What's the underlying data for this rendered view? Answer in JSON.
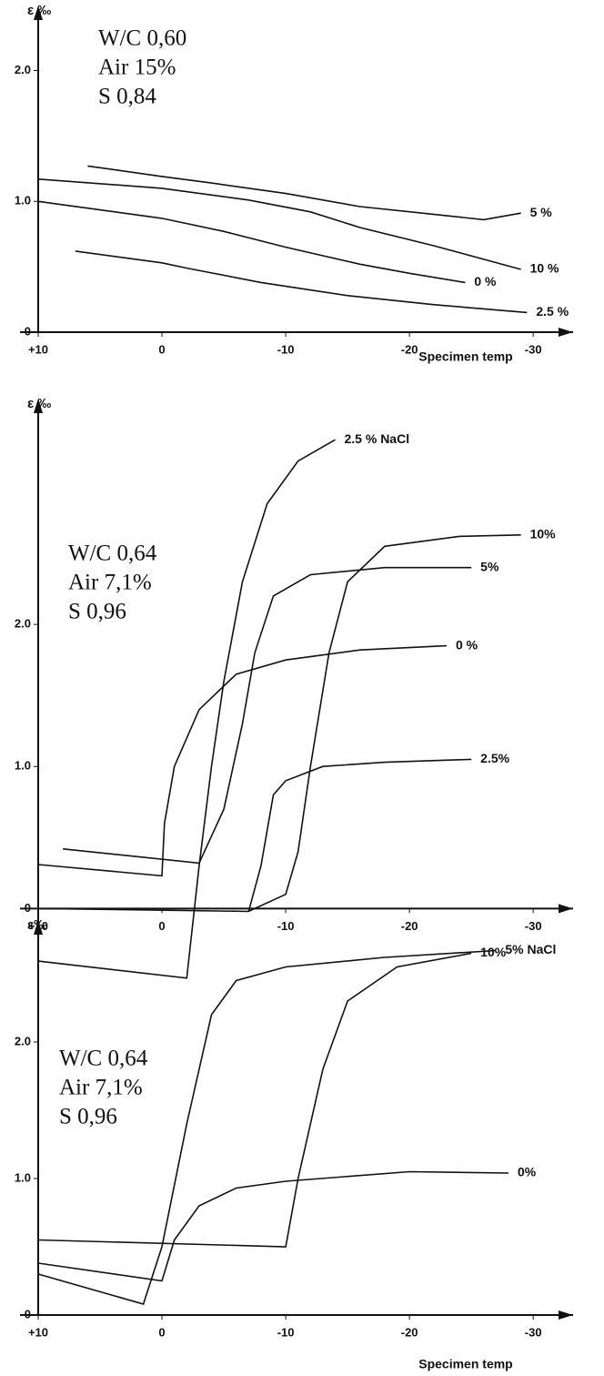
{
  "chart_data": [
    {
      "type": "line",
      "ylabel": "ε ‰",
      "xlabel": "Specimen temp",
      "annotations": [
        "W/C 0,60",
        "Air 15%",
        "S 0,84"
      ],
      "xlim": [
        10,
        -33
      ],
      "ylim": [
        0,
        2.4
      ],
      "xticks": [
        {
          "value": 10,
          "label": "+10"
        },
        0,
        -10,
        -20,
        -30
      ],
      "yticks": [
        0,
        {
          "value": 1,
          "label": "1.0"
        },
        {
          "value": 2,
          "label": "2.0"
        }
      ],
      "color": "#111",
      "series": [
        {
          "name": "5 %",
          "x": [
            6,
            0,
            -4,
            -10,
            -16,
            -22,
            -26,
            -29
          ],
          "values": [
            1.27,
            1.19,
            1.14,
            1.06,
            0.96,
            0.9,
            0.86,
            0.91
          ]
        },
        {
          "name": "10 %",
          "x": [
            10,
            0,
            -7,
            -12,
            -16,
            -22,
            -29
          ],
          "values": [
            1.17,
            1.1,
            1.01,
            0.92,
            0.8,
            0.66,
            0.48
          ]
        },
        {
          "name": "0 %",
          "x": [
            10,
            0,
            -5,
            -10,
            -16,
            -20,
            -24.5
          ],
          "values": [
            1.0,
            0.87,
            0.77,
            0.65,
            0.52,
            0.45,
            0.38
          ]
        },
        {
          "name": "2.5 %",
          "x": [
            7,
            0,
            -2,
            -8,
            -15,
            -22,
            -29.5
          ],
          "values": [
            0.62,
            0.53,
            0.49,
            0.38,
            0.28,
            0.21,
            0.15
          ]
        }
      ]
    },
    {
      "type": "line",
      "ylabel": "ε ‰",
      "annotations": [
        "W/C 0,64",
        "Air 7,1%",
        "S 0,96"
      ],
      "xlim": [
        10,
        -33
      ],
      "ylim": [
        -0.6,
        3.5
      ],
      "xticks": [
        {
          "value": 10,
          "label": "+10"
        },
        0,
        -10,
        -20,
        -30
      ],
      "yticks": [
        0,
        {
          "value": 1,
          "label": "1.0"
        },
        {
          "value": 2,
          "label": "2.0"
        }
      ],
      "color": "#111",
      "series": [
        {
          "name": "2.5 % NaCl",
          "x": [
            10,
            -2,
            -3,
            -4,
            -5,
            -6.5,
            -8.5,
            -11,
            -14
          ],
          "values": [
            -0.37,
            -0.49,
            0.3,
            1.0,
            1.6,
            2.3,
            2.85,
            3.15,
            3.3
          ]
        },
        {
          "name": "10%",
          "x": [
            10,
            -7,
            -10,
            -11,
            -12,
            -13.5,
            -15,
            -18,
            -24,
            -29
          ],
          "values": [
            0,
            -0.02,
            0.1,
            0.4,
            1.0,
            1.8,
            2.3,
            2.55,
            2.62,
            2.63
          ]
        },
        {
          "name": "5%",
          "x": [
            8,
            -3,
            -5,
            -6.5,
            -7.5,
            -9,
            -12,
            -18,
            -25
          ],
          "values": [
            0.42,
            0.32,
            0.7,
            1.3,
            1.8,
            2.2,
            2.35,
            2.4,
            2.4
          ]
        },
        {
          "name": "0 %",
          "x": [
            10,
            0,
            -0.2,
            -1,
            -3,
            -6,
            -10,
            -16,
            -23
          ],
          "values": [
            0.31,
            0.23,
            0.6,
            1.0,
            1.4,
            1.65,
            1.75,
            1.82,
            1.85
          ]
        },
        {
          "name": "2.5%",
          "x": [
            -7,
            -8,
            -9,
            -10,
            -13,
            -18,
            -25
          ],
          "values": [
            -0.02,
            0.3,
            0.8,
            0.9,
            1.0,
            1.03,
            1.05
          ]
        }
      ]
    },
    {
      "type": "line",
      "ylabel": "ε‰",
      "xlabel": "Specimen temp",
      "annotations": [
        "W/C 0,64",
        "Air 7,1%",
        "S 0,96"
      ],
      "xlim": [
        10,
        -33
      ],
      "ylim": [
        0,
        2.8
      ],
      "xticks": [
        {
          "value": 10,
          "label": "+10"
        },
        0,
        -10,
        -20,
        -30
      ],
      "yticks": [
        0,
        {
          "value": 1,
          "label": "1.0"
        },
        {
          "value": 2,
          "label": "2.0"
        }
      ],
      "color": "#111",
      "series": [
        {
          "name": "10%",
          "x": [
            10,
            -10,
            -11,
            -13,
            -15,
            -19,
            -25
          ],
          "values": [
            0.55,
            0.5,
            1.0,
            1.8,
            2.3,
            2.55,
            2.65
          ]
        },
        {
          "name": "5% NaCl",
          "x": [
            10,
            1.5,
            0,
            -2,
            -4,
            -6,
            -10,
            -18,
            -27
          ],
          "values": [
            0.3,
            0.08,
            0.5,
            1.4,
            2.2,
            2.45,
            2.55,
            2.62,
            2.67
          ]
        },
        {
          "name": "0%",
          "x": [
            10,
            0,
            -1,
            -3,
            -6,
            -10,
            -20,
            -28
          ],
          "values": [
            0.38,
            0.25,
            0.55,
            0.8,
            0.93,
            0.98,
            1.05,
            1.04
          ]
        }
      ]
    }
  ]
}
